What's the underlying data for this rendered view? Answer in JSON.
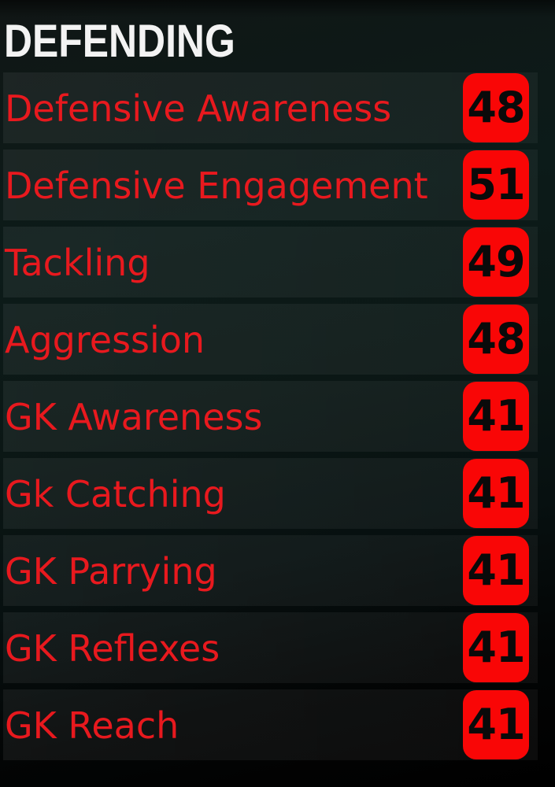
{
  "section": {
    "title": "DEFENDING"
  },
  "stats": [
    {
      "label": "Defensive Awareness",
      "value": "48"
    },
    {
      "label": "Defensive Engagement",
      "value": "51"
    },
    {
      "label": "Tackling",
      "value": "49"
    },
    {
      "label": "Aggression",
      "value": "48"
    },
    {
      "label": "GK Awareness",
      "value": "41"
    },
    {
      "label": "Gk Catching",
      "value": "41"
    },
    {
      "label": "GK Parrying",
      "value": "41"
    },
    {
      "label": "GK Reflexes",
      "value": "41"
    },
    {
      "label": "GK Reach",
      "value": "41"
    }
  ],
  "colors": {
    "header_white": "#f3f3f3",
    "label_red": "#e8191e",
    "badge_red": "#f90606",
    "value_black": "#0a0a0a"
  }
}
